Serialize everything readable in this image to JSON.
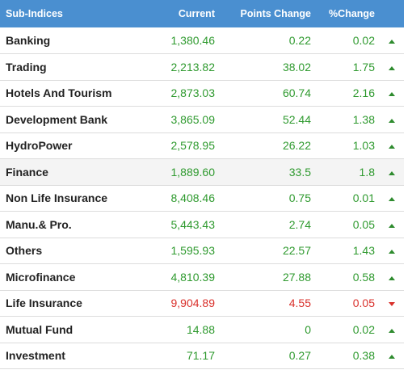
{
  "header": {
    "name": "Sub-Indices",
    "current": "Current",
    "points_change": "Points Change",
    "pct_change": "%Change"
  },
  "colors": {
    "header_bg": "#4a8fd0",
    "up": "#2f9a2f",
    "down": "#d9302b"
  },
  "rows": [
    {
      "name": "Banking",
      "current": "1,380.46",
      "points": "0.22",
      "pct": "0.02",
      "dir": "up"
    },
    {
      "name": "Trading",
      "current": "2,213.82",
      "points": "38.02",
      "pct": "1.75",
      "dir": "up"
    },
    {
      "name": "Hotels And Tourism",
      "current": "2,873.03",
      "points": "60.74",
      "pct": "2.16",
      "dir": "up"
    },
    {
      "name": "Development Bank",
      "current": "3,865.09",
      "points": "52.44",
      "pct": "1.38",
      "dir": "up"
    },
    {
      "name": "HydroPower",
      "current": "2,578.95",
      "points": "26.22",
      "pct": "1.03",
      "dir": "up"
    },
    {
      "name": "Finance",
      "current": "1,889.60",
      "points": "33.5",
      "pct": "1.8",
      "dir": "up"
    },
    {
      "name": "Non Life Insurance",
      "current": "8,408.46",
      "points": "0.75",
      "pct": "0.01",
      "dir": "up"
    },
    {
      "name": "Manu.& Pro.",
      "current": "5,443.43",
      "points": "2.74",
      "pct": "0.05",
      "dir": "up"
    },
    {
      "name": "Others",
      "current": "1,595.93",
      "points": "22.57",
      "pct": "1.43",
      "dir": "up"
    },
    {
      "name": "Microfinance",
      "current": "4,810.39",
      "points": "27.88",
      "pct": "0.58",
      "dir": "up"
    },
    {
      "name": "Life Insurance",
      "current": "9,904.89",
      "points": "4.55",
      "pct": "0.05",
      "dir": "down"
    },
    {
      "name": "Mutual Fund",
      "current": "14.88",
      "points": "0",
      "pct": "0.02",
      "dir": "up"
    },
    {
      "name": "Investment",
      "current": "71.17",
      "points": "0.27",
      "pct": "0.38",
      "dir": "up"
    }
  ]
}
